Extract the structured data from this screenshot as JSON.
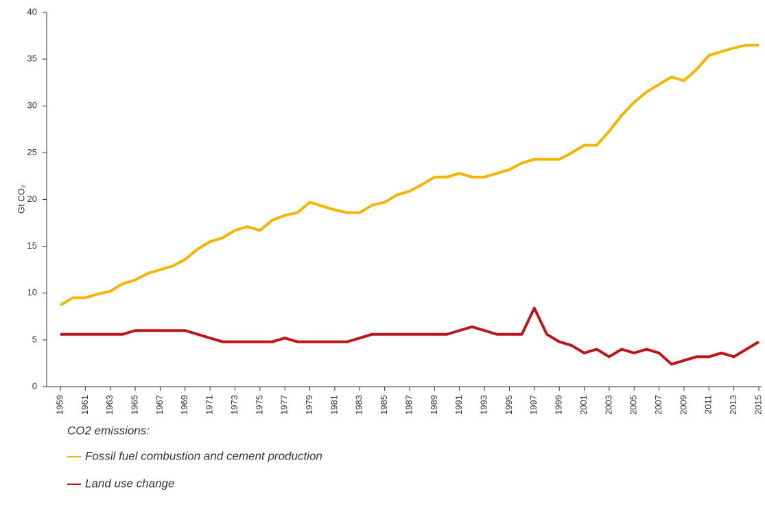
{
  "chart_data": {
    "type": "line",
    "y_label": "Gt CO₂",
    "legend_title": "CO2 emissions:",
    "x": [
      1959,
      1960,
      1961,
      1962,
      1963,
      1964,
      1965,
      1966,
      1967,
      1968,
      1969,
      1970,
      1971,
      1972,
      1973,
      1974,
      1975,
      1976,
      1977,
      1978,
      1979,
      1980,
      1981,
      1982,
      1983,
      1984,
      1985,
      1986,
      1987,
      1988,
      1989,
      1990,
      1991,
      1992,
      1993,
      1994,
      1995,
      1996,
      1997,
      1998,
      1999,
      2000,
      2001,
      2002,
      2003,
      2004,
      2005,
      2006,
      2007,
      2008,
      2009,
      2010,
      2011,
      2012,
      2013,
      2014,
      2015
    ],
    "series": [
      {
        "name": "Fossil fuel combustion and cement production",
        "color": "#f5b400",
        "values": [
          8.7,
          9.5,
          9.5,
          9.9,
          10.2,
          11.0,
          11.4,
          12.1,
          12.5,
          12.9,
          13.6,
          14.7,
          15.5,
          15.9,
          16.7,
          17.1,
          16.7,
          17.8,
          18.3,
          18.6,
          19.7,
          19.3,
          18.9,
          18.6,
          18.6,
          19.4,
          19.7,
          20.5,
          20.9,
          21.6,
          22.4,
          22.4,
          22.8,
          22.4,
          22.4,
          22.8,
          23.2,
          23.9,
          24.3,
          24.3,
          24.3,
          25.0,
          25.8,
          25.8,
          27.3,
          29.0,
          30.4,
          31.5,
          32.3,
          33.1,
          32.7,
          33.9,
          35.4,
          35.8,
          36.2,
          36.5,
          36.5
        ]
      },
      {
        "name": "Land use change",
        "color": "#c0141c",
        "values": [
          5.6,
          5.6,
          5.6,
          5.6,
          5.6,
          5.6,
          6.0,
          6.0,
          6.0,
          6.0,
          6.0,
          5.6,
          5.2,
          4.8,
          4.8,
          4.8,
          4.8,
          4.8,
          5.2,
          4.8,
          4.8,
          4.8,
          4.8,
          4.8,
          5.2,
          5.6,
          5.6,
          5.6,
          5.6,
          5.6,
          5.6,
          5.6,
          6.0,
          6.4,
          6.0,
          5.6,
          5.6,
          5.6,
          8.4,
          5.6,
          4.8,
          4.4,
          3.6,
          4.0,
          3.2,
          4.0,
          3.6,
          4.0,
          3.6,
          2.4,
          2.8,
          3.2,
          3.2,
          3.6,
          3.2,
          4.0,
          4.8
        ]
      }
    ],
    "xlim": [
      1959,
      2015
    ],
    "xticks": [
      1959,
      1961,
      1963,
      1965,
      1967,
      1969,
      1971,
      1973,
      1975,
      1977,
      1979,
      1981,
      1983,
      1985,
      1987,
      1989,
      1991,
      1993,
      1995,
      1997,
      1999,
      2001,
      2003,
      2005,
      2007,
      2009,
      2011,
      2013,
      2015
    ],
    "ylim": [
      0,
      40
    ],
    "yticks": [
      0,
      5,
      10,
      15,
      20,
      25,
      30,
      35,
      40
    ],
    "grid": false
  }
}
